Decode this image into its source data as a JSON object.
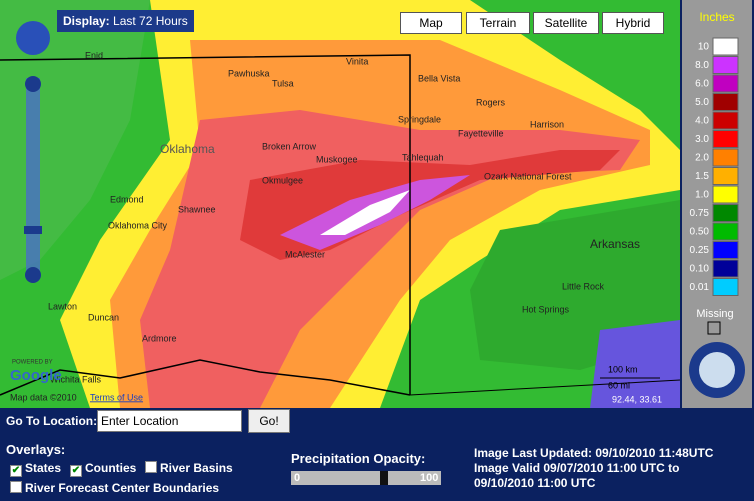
{
  "display": {
    "label": "Display:",
    "value": "Last 72 Hours"
  },
  "map_types": [
    "Map",
    "Terrain",
    "Satellite",
    "Hybrid"
  ],
  "legend": {
    "title": "Inches",
    "items": [
      {
        "label": "10",
        "color": "#ffffff"
      },
      {
        "label": "8.0",
        "color": "#cc33ff"
      },
      {
        "label": "6.0",
        "color": "#c000c0"
      },
      {
        "label": "5.0",
        "color": "#a00000"
      },
      {
        "label": "4.0",
        "color": "#cc0000"
      },
      {
        "label": "3.0",
        "color": "#ff0000"
      },
      {
        "label": "2.0",
        "color": "#ff8000"
      },
      {
        "label": "1.5",
        "color": "#ffb000"
      },
      {
        "label": "1.0",
        "color": "#ffff00"
      },
      {
        "label": "0.75",
        "color": "#008800"
      },
      {
        "label": "0.50",
        "color": "#00bb00"
      },
      {
        "label": "0.25",
        "color": "#0000ff"
      },
      {
        "label": "0.10",
        "color": "#000099"
      },
      {
        "label": "0.01",
        "color": "#00ccff"
      }
    ],
    "missing": "Missing"
  },
  "map": {
    "places": [
      "Enid",
      "Tulsa",
      "Broken Arrow",
      "Okmulgee",
      "Muskogee",
      "Tahlequah",
      "Springdale",
      "Fayetteville",
      "Rogers",
      "Bella Vista",
      "Harrison",
      "Vinita",
      "Pawhuska",
      "Edmond",
      "Oklahoma City",
      "Shawnee",
      "McAlester",
      "Lawton",
      "Duncan",
      "Ardmore",
      "Wichita Falls",
      "Little Rock",
      "Arkansas",
      "Hot Springs",
      "Ozark National Forest",
      "Oklahoma"
    ],
    "scale": [
      "100 km",
      "60 mi"
    ],
    "attribution": "Map data ©2010",
    "terms": "Terms of Use",
    "coordinates": "92.44, 33.61",
    "powered_by": "POWERED BY",
    "google": "Google"
  },
  "go_to": {
    "label": "Go To Location:",
    "placeholder": "Enter Location",
    "button": "Go!"
  },
  "overlays": {
    "title": "Overlays:",
    "items": [
      {
        "label": "States",
        "checked": true
      },
      {
        "label": "Counties",
        "checked": true
      },
      {
        "label": "River Basins",
        "checked": false
      },
      {
        "label": "River Forecast Center Boundaries",
        "checked": false
      }
    ]
  },
  "opacity": {
    "title": "Precipitation Opacity:",
    "min": 0,
    "max": 100,
    "value": 63
  },
  "status": {
    "updated": "Image Last Updated: 09/10/2010 11:48UTC",
    "valid": [
      "Image Valid 09/07/2010 11:00 UTC to",
      "09/10/2010 11:00 UTC"
    ]
  }
}
